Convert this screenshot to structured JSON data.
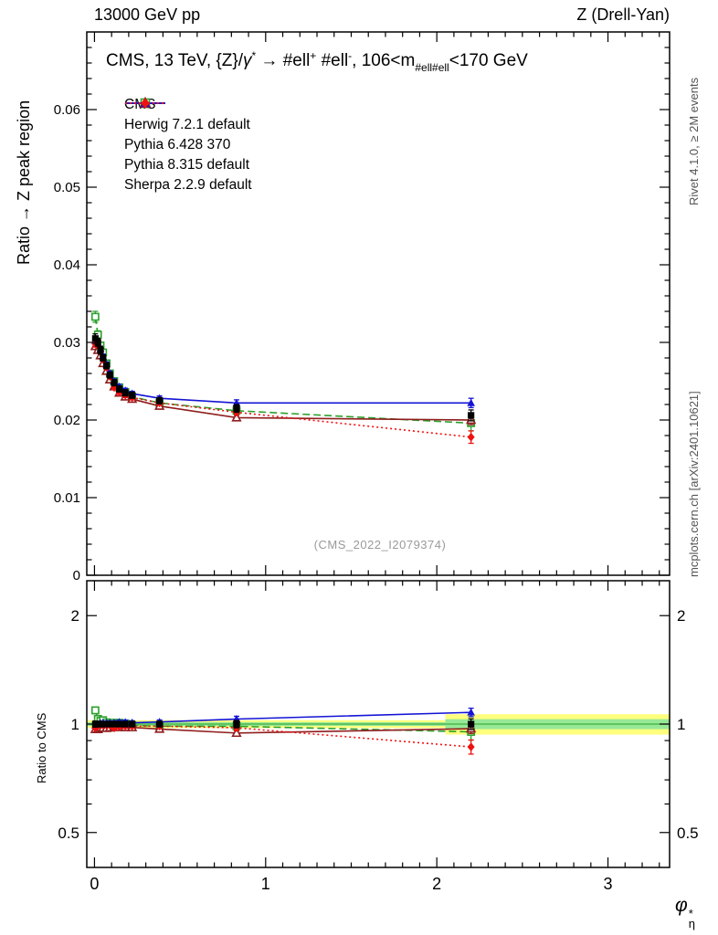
{
  "header": {
    "left": "13000 GeV pp",
    "right": "Z (Drell-Yan)"
  },
  "side_texts": {
    "top_right": "Rivet 4.1.0, ≥ 2M events",
    "bottom_right": "mcplots.cern.ch [arXiv:2401.10621]"
  },
  "watermark": "(CMS_2022_I2079374)",
  "panel_title": {
    "t1": "CMS, 13 TeV, {Z}/",
    "gamma": "γ",
    "star": "*",
    "t2": " → #ell",
    "plus": "+",
    "t3": " #ell",
    "minus": "-",
    "t4": ", 106<m",
    "sub": "#ell#ell",
    "t5": "<170 GeV"
  },
  "x_label": {
    "base": "φ",
    "sup": "*",
    "sub": "η"
  },
  "chart_data": {
    "type": "line",
    "title": "CMS, 13 TeV, {Z}/γ* → #ell+ #ell-, 106<m_#ell#ell<170 GeV",
    "xlabel": "φ*_η",
    "ylabel_main": "Ratio → Z peak region",
    "ylabel_ratio": "Ratio to CMS",
    "xlim": [
      -0.045,
      3.36
    ],
    "ylim_main": [
      0,
      0.07
    ],
    "ylim_ratio": [
      0.4,
      2.5
    ],
    "ratio_scale": "log",
    "grid": false,
    "legend_position": "top-left",
    "x_ticks": [
      0,
      1,
      2,
      3
    ],
    "y_ticks_main": [
      0,
      0.01,
      0.02,
      0.03,
      0.04,
      0.05,
      0.06
    ],
    "y_ticks_ratio": [
      0.5,
      1,
      2
    ],
    "x": [
      0.005,
      0.02,
      0.035,
      0.05,
      0.07,
      0.09,
      0.115,
      0.145,
      0.18,
      0.22,
      0.38,
      0.83,
      2.2
    ],
    "series": [
      {
        "name": "CMS",
        "color": "#000000",
        "marker": "square-filled",
        "line": "none",
        "values": [
          0.0305,
          0.03,
          0.029,
          0.028,
          0.027,
          0.0258,
          0.0248,
          0.024,
          0.0235,
          0.0232,
          0.0225,
          0.0215,
          0.0206
        ],
        "errors": [
          0.0006,
          0.0005,
          0.0005,
          0.0004,
          0.0004,
          0.0004,
          0.0004,
          0.0004,
          0.0004,
          0.0004,
          0.0004,
          0.0005,
          0.0007
        ]
      },
      {
        "name": "Herwig 7.2.1 default",
        "color": "#2ca02c",
        "marker": "square-open",
        "line": "dashed",
        "values": [
          0.0333,
          0.031,
          0.0296,
          0.0287,
          0.0273,
          0.026,
          0.025,
          0.0242,
          0.0236,
          0.023,
          0.0222,
          0.0212,
          0.0196
        ],
        "errors": [
          0.0007,
          0.0005,
          0.0004,
          0.0004,
          0.0003,
          0.0003,
          0.0003,
          0.0003,
          0.0003,
          0.0003,
          0.0003,
          0.0005,
          0.001
        ]
      },
      {
        "name": "Pythia 6.428 370",
        "color": "#8f1d1d",
        "marker": "triangle-open",
        "line": "solid",
        "values": [
          0.0295,
          0.029,
          0.0283,
          0.0273,
          0.0263,
          0.0252,
          0.0243,
          0.0235,
          0.023,
          0.0227,
          0.0218,
          0.0203,
          0.02
        ],
        "errors": [
          0.0004,
          0.0003,
          0.0003,
          0.0003,
          0.0003,
          0.0003,
          0.0003,
          0.0003,
          0.0003,
          0.0003,
          0.0003,
          0.0004,
          0.0006
        ]
      },
      {
        "name": "Pythia 8.315 default",
        "color": "#1414d4",
        "marker": "triangle-filled",
        "line": "solid",
        "values": [
          0.0302,
          0.0299,
          0.0292,
          0.0282,
          0.0272,
          0.026,
          0.025,
          0.0243,
          0.0238,
          0.0234,
          0.0228,
          0.0222,
          0.0222
        ],
        "errors": [
          0.0004,
          0.0003,
          0.0003,
          0.0003,
          0.0003,
          0.0003,
          0.0003,
          0.0003,
          0.0003,
          0.0003,
          0.0003,
          0.0004,
          0.0006
        ]
      },
      {
        "name": "Sherpa 2.2.9 default",
        "color": "#ee1111",
        "marker": "diamond-filled",
        "line": "dotted",
        "values": [
          0.0298,
          0.0296,
          0.0288,
          0.0278,
          0.0268,
          0.0256,
          0.0242,
          0.0236,
          0.0232,
          0.0229,
          0.0222,
          0.021,
          0.0178
        ],
        "errors": [
          0.0004,
          0.0003,
          0.0003,
          0.0003,
          0.0003,
          0.0003,
          0.0003,
          0.0003,
          0.0003,
          0.0003,
          0.0003,
          0.0004,
          0.0008
        ]
      }
    ],
    "band": {
      "center": 1,
      "colors": {
        "outer": "#ffff7d",
        "inner": "#97e897",
        "center_line": "#3fae3f"
      },
      "segments": [
        {
          "x0": -0.045,
          "x1": 2.05,
          "yellow": [
            0.975,
            1.025
          ],
          "green": [
            0.988,
            1.012
          ]
        },
        {
          "x0": 2.05,
          "x1": 3.36,
          "yellow": [
            0.935,
            1.065
          ],
          "green": [
            0.968,
            1.032
          ]
        }
      ]
    }
  }
}
